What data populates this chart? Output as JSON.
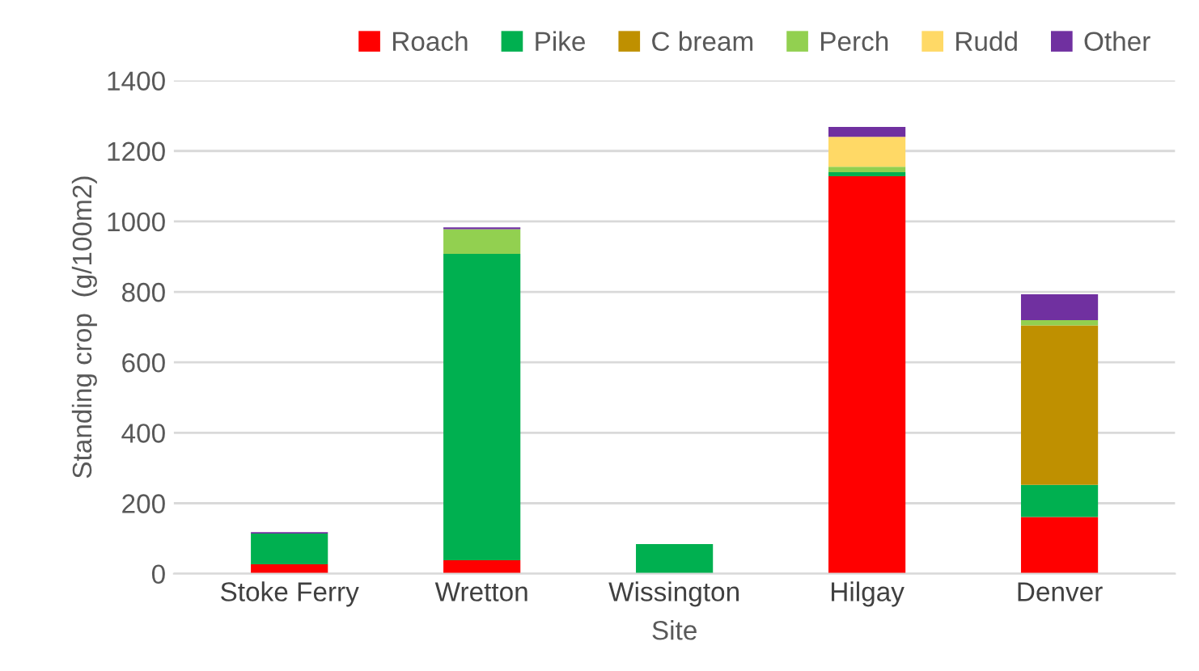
{
  "chart_data": {
    "type": "bar",
    "stacked": true,
    "xlabel": "Site",
    "ylabel": "Standing crop  (g/100m2)",
    "categories": [
      "Stoke Ferry",
      "Wretton",
      "Wissington",
      "Hilgay",
      "Denver"
    ],
    "series": [
      {
        "name": "Roach",
        "color": "#ff0000",
        "values": [
          27,
          38,
          0,
          1128,
          161
        ]
      },
      {
        "name": "Pike",
        "color": "#00b050",
        "values": [
          87,
          870,
          84,
          12,
          91
        ]
      },
      {
        "name": "C bream",
        "color": "#bf9000",
        "values": [
          0,
          0,
          0,
          0,
          453
        ]
      },
      {
        "name": "Perch",
        "color": "#92d050",
        "values": [
          0,
          70,
          0,
          15,
          15
        ]
      },
      {
        "name": "Rudd",
        "color": "#ffd966",
        "values": [
          0,
          0,
          0,
          85,
          0
        ]
      },
      {
        "name": "Other",
        "color": "#7030a0",
        "values": [
          4,
          5,
          0,
          28,
          73
        ]
      }
    ],
    "ylim": [
      0,
      1400
    ],
    "yticks": [
      0,
      200,
      400,
      600,
      800,
      1000,
      1200,
      1400
    ],
    "grid": "y",
    "legend": "top right"
  }
}
